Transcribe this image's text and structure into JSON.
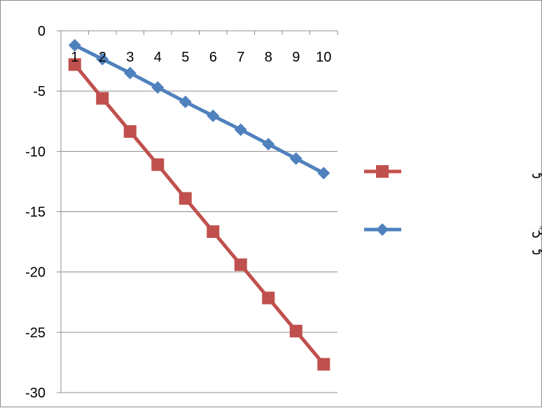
{
  "chart_data": {
    "type": "line",
    "title": "",
    "xlabel": "",
    "ylabel": "",
    "categories": [
      "1",
      "2",
      "3",
      "4",
      "5",
      "6",
      "7",
      "8",
      "9",
      "10"
    ],
    "ylim": [
      -30,
      0
    ],
    "y_ticks": [
      "0",
      "-5",
      "-10",
      "-15",
      "-20",
      "-25",
      "-30"
    ],
    "grid": "horizontal",
    "x_axis_position": "top",
    "legend_position": "right",
    "series": [
      {
        "name": "تقاضای بخش دولتی",
        "color": "#c0504d",
        "marker": "square",
        "values": [
          -2.8,
          -5.6,
          -8.35,
          -11.1,
          -13.9,
          -16.65,
          -19.4,
          -22.15,
          -24.9,
          -27.65
        ]
      },
      {
        "name": "تقاضای خانوار بخش خصوصی",
        "color": "#4f81bd",
        "marker": "diamond",
        "values": [
          -1.2,
          -2.35,
          -3.5,
          -4.7,
          -5.9,
          -7.05,
          -8.2,
          -9.4,
          -10.6,
          -11.8
        ]
      }
    ]
  }
}
